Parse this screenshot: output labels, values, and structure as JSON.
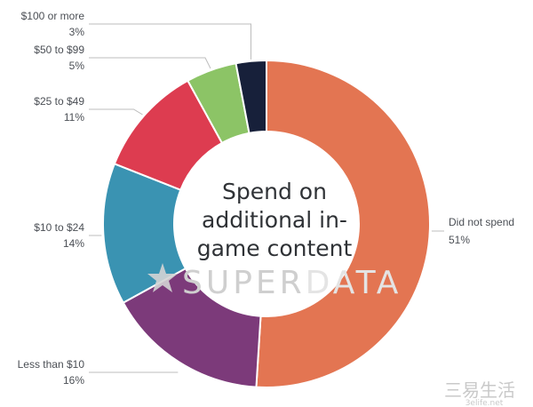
{
  "chart_data": {
    "type": "pie",
    "title": "Spend on additional in-game content",
    "title_lines": [
      "Spend on",
      "additional in-",
      "game content"
    ],
    "slices": [
      {
        "label": "Did not spend",
        "value_text": "51%",
        "value": 51,
        "color": "#e37552"
      },
      {
        "label": "Less than $10",
        "value_text": "16%",
        "value": 16,
        "color": "#7c3a7a"
      },
      {
        "label": "$10 to $24",
        "value_text": "14%",
        "value": 14,
        "color": "#3a93b2"
      },
      {
        "label": "$25 to $49",
        "value_text": "11%",
        "value": 11,
        "color": "#dd3c50"
      },
      {
        "label": "$50 to $99",
        "value_text": "5%",
        "value": 5,
        "color": "#8cc466"
      },
      {
        "label": "$100 or more",
        "value_text": "3%",
        "value": 3,
        "color": "#17203a"
      }
    ]
  },
  "watermark": {
    "text_super": "SUPER",
    "text_data": "DATA",
    "color_super": "#cfcfcf",
    "color_data": "#e4e4e4"
  },
  "corner_mark": {
    "text_top": "三易生活",
    "text_bottom": "3elife.net",
    "color": "#c9c9c9"
  }
}
